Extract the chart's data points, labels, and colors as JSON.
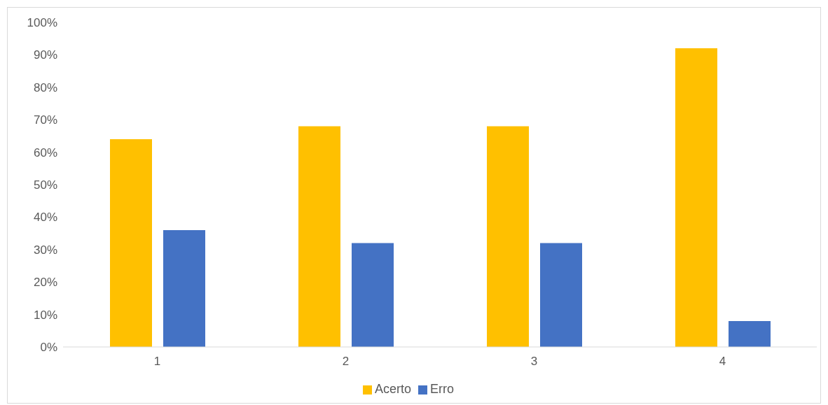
{
  "chart_data": {
    "type": "bar",
    "categories": [
      "1",
      "2",
      "3",
      "4"
    ],
    "series": [
      {
        "name": "Acerto",
        "color": "#ffc000",
        "values": [
          64,
          68,
          68,
          92
        ]
      },
      {
        "name": "Erro",
        "color": "#4472c4",
        "values": [
          36,
          32,
          32,
          8
        ]
      }
    ],
    "ylim": [
      0,
      100
    ],
    "yticks": [
      {
        "value": 0,
        "label": "0%"
      },
      {
        "value": 10,
        "label": "10%"
      },
      {
        "value": 20,
        "label": "20%"
      },
      {
        "value": 30,
        "label": "30%"
      },
      {
        "value": 40,
        "label": "40%"
      },
      {
        "value": 50,
        "label": "50%"
      },
      {
        "value": 60,
        "label": "60%"
      },
      {
        "value": 70,
        "label": "70%"
      },
      {
        "value": 80,
        "label": "80%"
      },
      {
        "value": 90,
        "label": "90%"
      },
      {
        "value": 100,
        "label": "100%"
      }
    ],
    "legend": "bottom"
  }
}
